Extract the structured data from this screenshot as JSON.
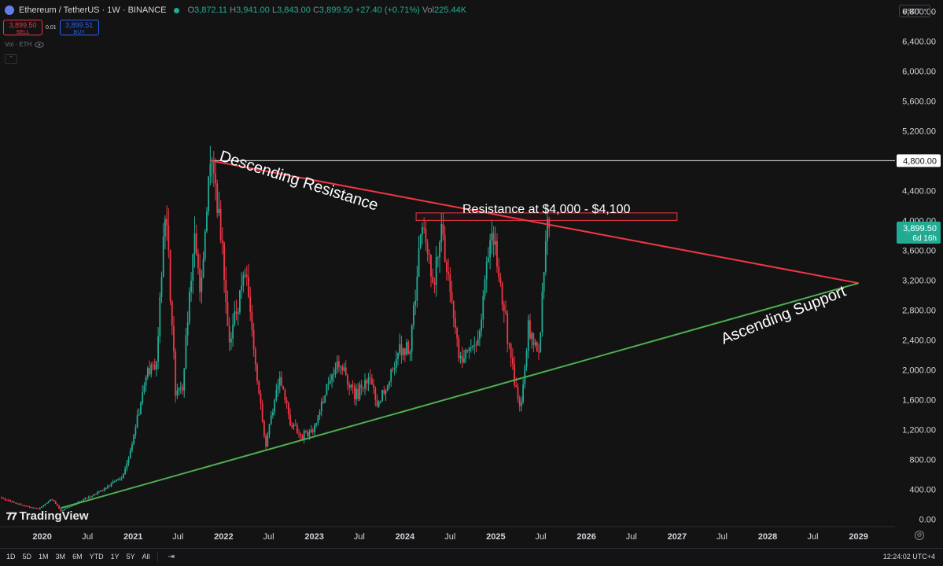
{
  "header": {
    "symbol": "Ethereum / TetherUS · 1W · BINANCE",
    "o_label": "O",
    "o": "3,872.11",
    "h_label": "H",
    "h": "3,941.00",
    "l_label": "L",
    "l": "3,843.00",
    "c_label": "C",
    "c": "3,899.50",
    "change": "+27.40 (+0.71%)",
    "vol_label": "Vol",
    "vol": "225.44K"
  },
  "trade": {
    "sell_price": "3,899.50",
    "sell_label": "SELL",
    "spread": "0.01",
    "buy_price": "3,899.51",
    "buy_label": "BUY"
  },
  "volume_row": "Vol · ETH",
  "currency": "USDT",
  "brand": "TradingView",
  "bottom": {
    "ranges": [
      "1D",
      "5D",
      "1M",
      "3M",
      "6M",
      "YTD",
      "1Y",
      "5Y",
      "All"
    ],
    "time": "12:24:02 UTC+4"
  },
  "colors": {
    "up": "#22ab94",
    "down": "#f23645",
    "resistance": "#f23645",
    "support": "#4caf50",
    "background": "#131313"
  },
  "icons": [
    "eth-logo-icon",
    "market-status-dot-icon",
    "eye-icon",
    "collapse-chevron-icon",
    "calendar-range-icon",
    "settings-gear-icon"
  ],
  "chart_data": {
    "type": "candlestick",
    "symbol": "Ethereum / TetherUS",
    "interval": "1W",
    "exchange": "BINANCE",
    "y_axis": {
      "ticks": [
        0,
        400,
        800,
        1200,
        1600,
        2000,
        2400,
        2800,
        3200,
        3600,
        4000,
        4400,
        4800,
        5200,
        5600,
        6000,
        6400,
        6800
      ],
      "tick_labels": [
        "0.00",
        "400.00",
        "800.00",
        "1,200.00",
        "1,600.00",
        "2,000.00",
        "2,400.00",
        "2,800.00",
        "3,200.00",
        "3,600.00",
        "4,000.00",
        "4,400.00",
        "4,800.00",
        "5,200.00",
        "5,600.00",
        "6,000.00",
        "6,400.00",
        "6,800.00"
      ],
      "range": [
        -100,
        6950
      ]
    },
    "x_axis": {
      "range": [
        "2019-07-15",
        "2029-05-28"
      ],
      "ticks": [
        {
          "date": "2020-01-01",
          "label": "2020",
          "bold": true
        },
        {
          "date": "2020-07-01",
          "label": "Jul",
          "bold": false
        },
        {
          "date": "2021-01-01",
          "label": "2021",
          "bold": true
        },
        {
          "date": "2021-07-01",
          "label": "Jul",
          "bold": false
        },
        {
          "date": "2022-01-01",
          "label": "2022",
          "bold": true
        },
        {
          "date": "2022-07-01",
          "label": "Jul",
          "bold": false
        },
        {
          "date": "2023-01-01",
          "label": "2023",
          "bold": true
        },
        {
          "date": "2023-07-01",
          "label": "Jul",
          "bold": false
        },
        {
          "date": "2024-01-01",
          "label": "2024",
          "bold": true
        },
        {
          "date": "2024-07-01",
          "label": "Jul",
          "bold": false
        },
        {
          "date": "2025-01-01",
          "label": "2025",
          "bold": true
        },
        {
          "date": "2025-07-01",
          "label": "Jul",
          "bold": false
        },
        {
          "date": "2026-01-01",
          "label": "2026",
          "bold": true
        },
        {
          "date": "2026-07-01",
          "label": "Jul",
          "bold": false
        },
        {
          "date": "2027-01-01",
          "label": "2027",
          "bold": true
        },
        {
          "date": "2027-07-01",
          "label": "Jul",
          "bold": false
        },
        {
          "date": "2028-01-01",
          "label": "2028",
          "bold": true
        },
        {
          "date": "2028-07-01",
          "label": "Jul",
          "bold": false
        },
        {
          "date": "2029-01-01",
          "label": "2029",
          "bold": true
        }
      ]
    },
    "price_path": [
      [
        "2019-07-15",
        290
      ],
      [
        "2019-09-15",
        210
      ],
      [
        "2019-12-15",
        135
      ],
      [
        "2020-02-10",
        270
      ],
      [
        "2020-03-16",
        110
      ],
      [
        "2020-06-01",
        240
      ],
      [
        "2020-09-01",
        390
      ],
      [
        "2020-11-25",
        600
      ],
      [
        "2021-01-10",
        1200
      ],
      [
        "2021-02-20",
        1900
      ],
      [
        "2021-04-05",
        2100
      ],
      [
        "2021-05-12",
        4200
      ],
      [
        "2021-06-21",
        1750
      ],
      [
        "2021-07-20",
        1800
      ],
      [
        "2021-09-06",
        3900
      ],
      [
        "2021-09-27",
        2950
      ],
      [
        "2021-11-08",
        4800
      ],
      [
        "2021-12-20",
        3900
      ],
      [
        "2022-01-24",
        2300
      ],
      [
        "2022-03-28",
        3400
      ],
      [
        "2022-05-12",
        2000
      ],
      [
        "2022-06-18",
        950
      ],
      [
        "2022-08-14",
        1950
      ],
      [
        "2022-09-26",
        1300
      ],
      [
        "2022-11-09",
        1100
      ],
      [
        "2022-12-30",
        1200
      ],
      [
        "2023-02-15",
        1700
      ],
      [
        "2023-04-16",
        2100
      ],
      [
        "2023-06-15",
        1650
      ],
      [
        "2023-08-14",
        1850
      ],
      [
        "2023-09-12",
        1550
      ],
      [
        "2023-10-22",
        1800
      ],
      [
        "2023-12-10",
        2300
      ],
      [
        "2024-01-22",
        2250
      ],
      [
        "2024-03-11",
        4050
      ],
      [
        "2024-04-25",
        3150
      ],
      [
        "2024-05-27",
        3900
      ],
      [
        "2024-08-05",
        2200
      ],
      [
        "2024-09-06",
        2200
      ],
      [
        "2024-10-28",
        2500
      ],
      [
        "2024-12-16",
        4000
      ],
      [
        "2025-01-13",
        3300
      ],
      [
        "2025-02-28",
        2200
      ],
      [
        "2025-04-09",
        1450
      ],
      [
        "2025-05-12",
        2550
      ],
      [
        "2025-06-23",
        2200
      ],
      [
        "2025-07-21",
        3700
      ],
      [
        "2025-08-04",
        3899.5
      ]
    ],
    "last_price": 3899.5,
    "last_price_label": "3,899.50",
    "countdown": "6d 16h",
    "horizontal_line": {
      "value": 4800,
      "label": "4,800.00"
    },
    "annotations": {
      "descending_resistance": {
        "text": "Descending Resistance",
        "from": [
          "2021-11-08",
          4800
        ],
        "to": [
          "2029-01-01",
          3160
        ]
      },
      "ascending_support": {
        "text": "Ascending Support",
        "from": [
          "2020-03-16",
          150
        ],
        "to": [
          "2029-01-01",
          3160
        ]
      },
      "resistance_zone": {
        "text": "Resistance at $4,000 - $4,100",
        "from_date": "2024-02-15",
        "to_date": "2027-01-01",
        "low": 4000,
        "high": 4100
      }
    },
    "grid": false,
    "legend": "top-left"
  }
}
